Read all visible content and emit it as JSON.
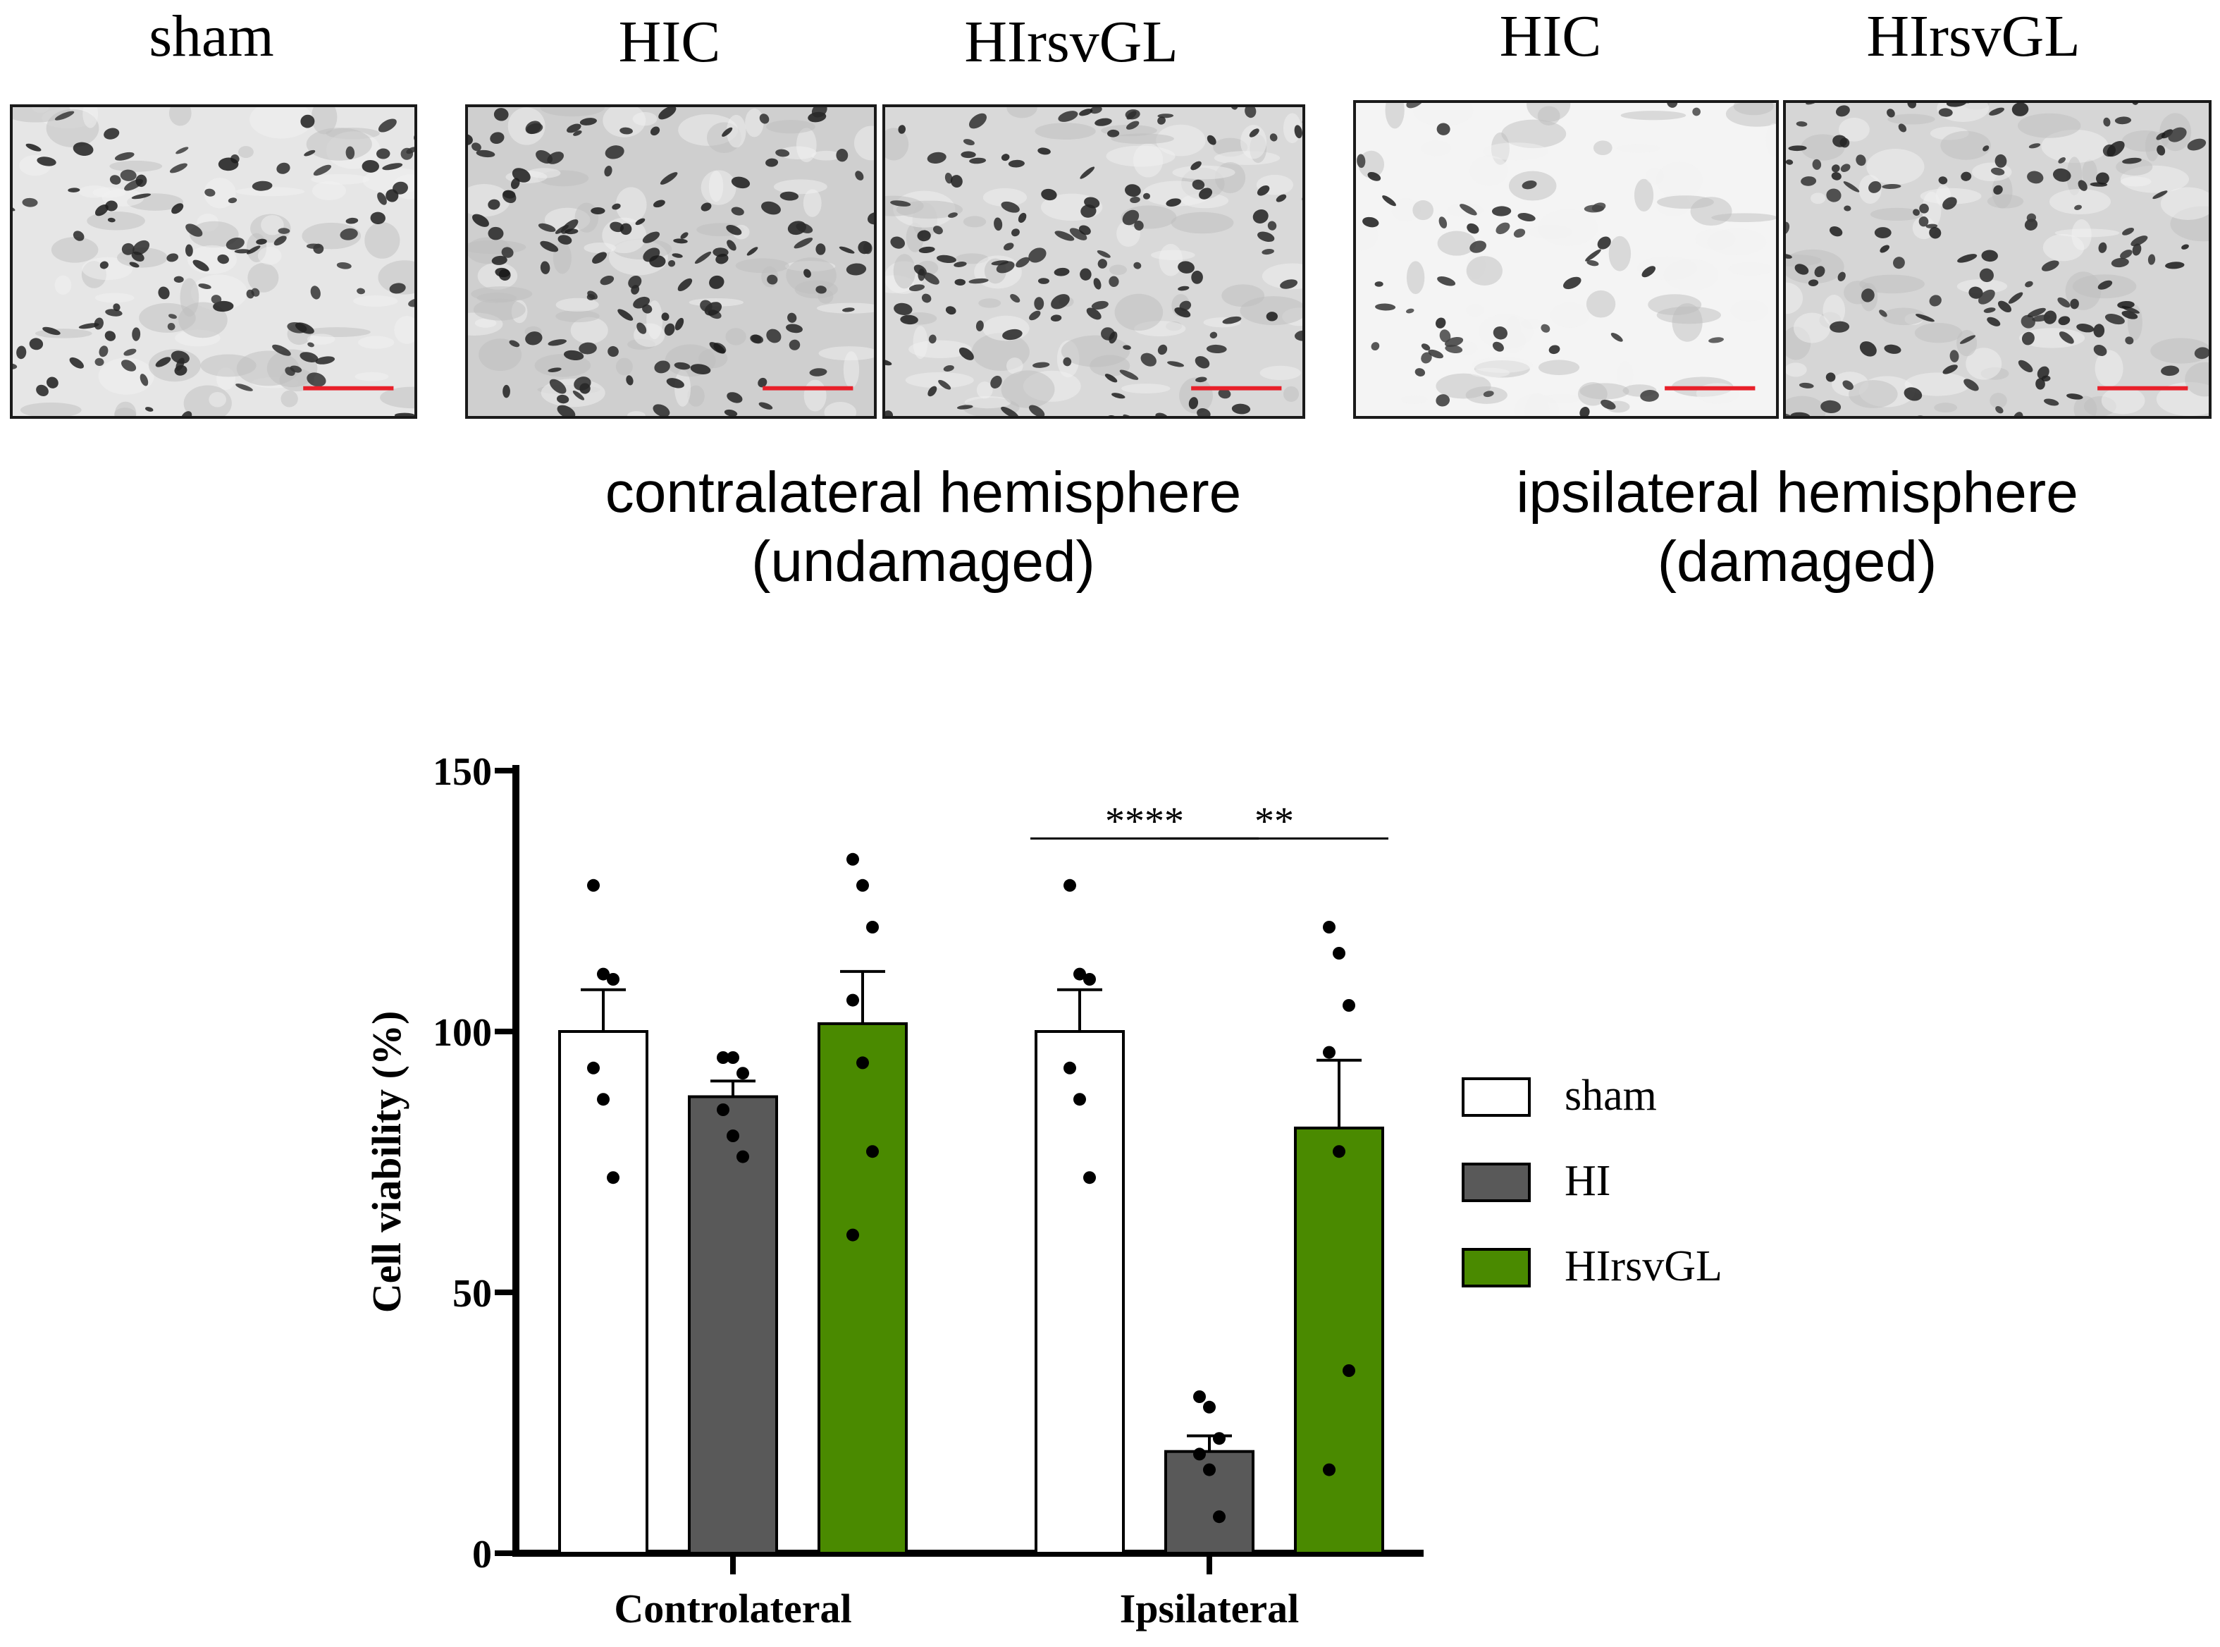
{
  "panels": {
    "captions": [
      "sham",
      "HIC",
      "HIrsvGL",
      "HIC",
      "HIrsvGL"
    ],
    "scale_bar_color": "#e8202a",
    "regions": [
      {
        "line1": "contralateral hemisphere",
        "line2": "(undamaged)"
      },
      {
        "line1": "ipsilateral hemisphere",
        "line2": "(damaged)"
      }
    ]
  },
  "chart_data": {
    "type": "bar",
    "ylabel": "Cell viability (%)",
    "xlabel": "",
    "ylim": [
      0,
      150
    ],
    "yticks": [
      0,
      50,
      100,
      150
    ],
    "categories": [
      "Controlateral",
      "Ipsilateral"
    ],
    "series": [
      {
        "name": "sham",
        "color": "#ffffff",
        "values": [
          100,
          100
        ],
        "sem": [
          8,
          8
        ],
        "points": [
          [
            128,
            111,
            110,
            93,
            87,
            72
          ],
          [
            128,
            111,
            110,
            93,
            87,
            72
          ]
        ]
      },
      {
        "name": "HI",
        "color": "#595959",
        "values": [
          87.5,
          19.5
        ],
        "sem": [
          3,
          3
        ],
        "points": [
          [
            95,
            95,
            92,
            85,
            80,
            76
          ],
          [
            30,
            28,
            22,
            19,
            16,
            7
          ]
        ]
      },
      {
        "name": "HIrsvGL",
        "color": "#4a8a00",
        "values": [
          101.5,
          81.5
        ],
        "sem": [
          10,
          13
        ],
        "points": [
          [
            133,
            128,
            120,
            106,
            94,
            77,
            61
          ],
          [
            120,
            115,
            105,
            96,
            77,
            35,
            16
          ]
        ]
      }
    ],
    "significance": [
      {
        "category": "Ipsilateral",
        "from": "sham",
        "to": "HI",
        "label": "****",
        "y": 137
      },
      {
        "category": "Ipsilateral",
        "from": "HI",
        "to": "HIrsvGL",
        "label": "**",
        "y": 137
      }
    ],
    "legend": {
      "position": "right",
      "entries": [
        "sham",
        "HI",
        "HIrsvGL"
      ]
    }
  }
}
